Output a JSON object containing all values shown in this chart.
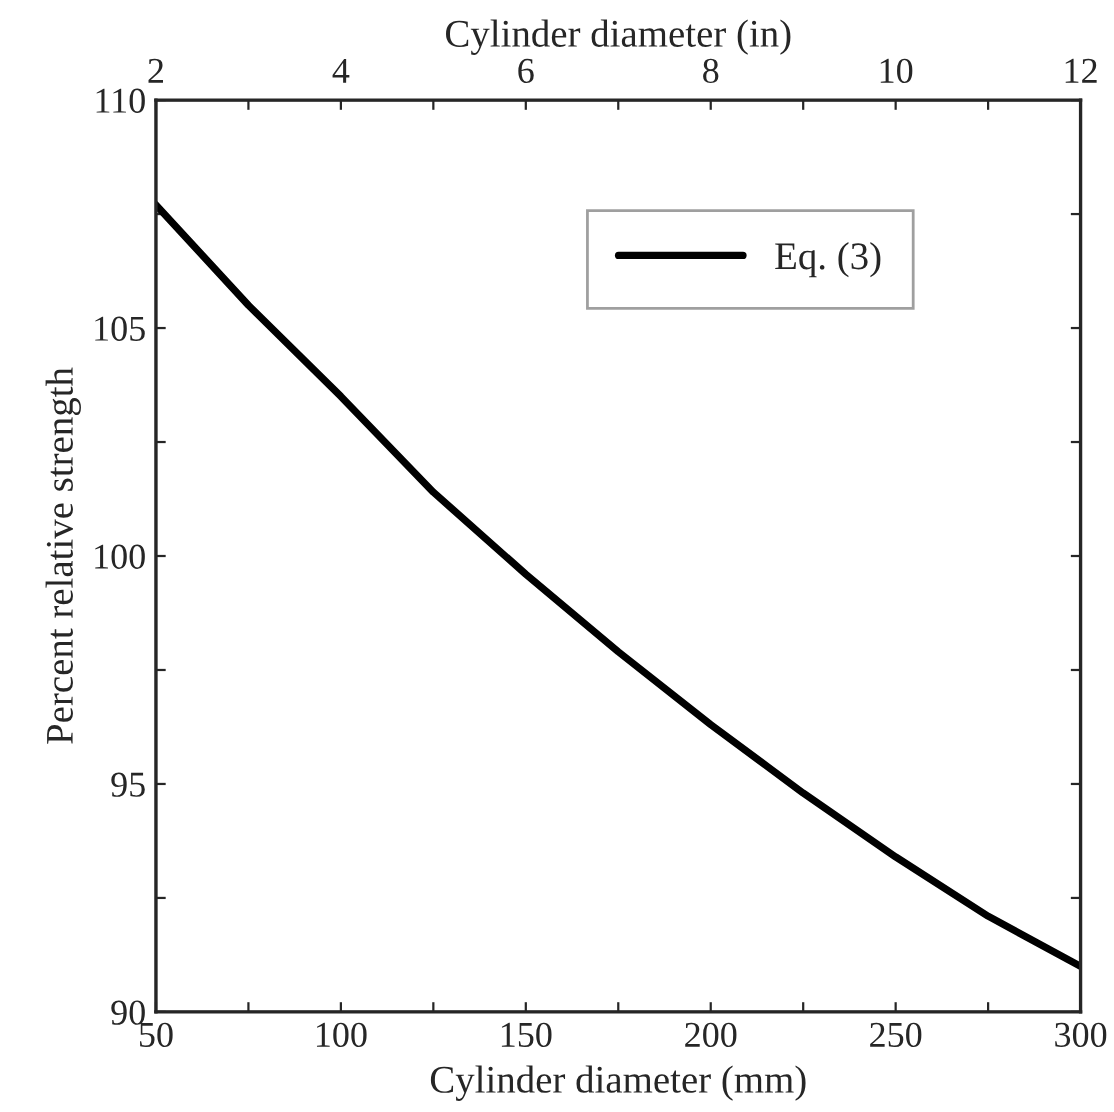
{
  "chart_data": {
    "type": "line",
    "xlabel": "Cylinder diameter (mm)",
    "ylabel": "Percent relative strength",
    "x2label": "Cylinder diameter (in)",
    "x": [
      50,
      75,
      100,
      125,
      150,
      175,
      200,
      225,
      250,
      275,
      300
    ],
    "series": [
      {
        "name": "Eq. (3)",
        "color": "#000000",
        "values": [
          107.7,
          105.5,
          103.5,
          101.4,
          99.6,
          97.9,
          96.3,
          94.8,
          93.4,
          92.1,
          91.0
        ]
      }
    ],
    "xlim": [
      50,
      300
    ],
    "ylim": [
      90,
      110
    ],
    "x2lim": [
      2,
      12
    ],
    "xticks": [
      50,
      {
        "value": 75,
        "label": null
      },
      100,
      {
        "value": 125,
        "label": null
      },
      150,
      {
        "value": 175,
        "label": null
      },
      200,
      {
        "value": 225,
        "label": null
      },
      250,
      {
        "value": 275,
        "label": null
      },
      300
    ],
    "yticks": [
      90,
      {
        "value": 92.5,
        "label": null
      },
      95,
      {
        "value": 97.5,
        "label": null
      },
      100,
      {
        "value": 102.5,
        "label": null
      },
      105,
      {
        "value": 107.5,
        "label": null
      },
      110
    ],
    "x2ticks": [
      2,
      {
        "value": 3,
        "label": null
      },
      4,
      {
        "value": 5,
        "label": null
      },
      6,
      {
        "value": 7,
        "label": null
      },
      8,
      {
        "value": 9,
        "label": null
      },
      10,
      {
        "value": 11,
        "label": null
      },
      12
    ],
    "legend": "top right",
    "grid": false,
    "marker": "none",
    "line_style": "solid"
  }
}
